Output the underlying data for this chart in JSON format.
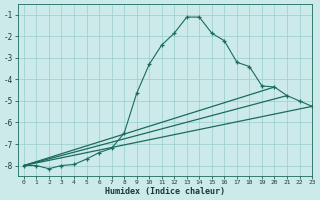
{
  "xlabel": "Humidex (Indice chaleur)",
  "background_color": "#cceaea",
  "grid_color": "#99cccc",
  "line_color": "#1a6b5a",
  "xlim": [
    -0.5,
    23
  ],
  "ylim": [
    -8.5,
    -0.5
  ],
  "xticks": [
    0,
    1,
    2,
    3,
    4,
    5,
    6,
    7,
    8,
    9,
    10,
    11,
    12,
    13,
    14,
    15,
    16,
    17,
    18,
    19,
    20,
    21,
    22,
    23
  ],
  "yticks": [
    -1,
    -2,
    -3,
    -4,
    -5,
    -6,
    -7,
    -8
  ],
  "curve": {
    "x": [
      0,
      1,
      2,
      3,
      4,
      5,
      6,
      7,
      8,
      9,
      10,
      11,
      12,
      13,
      14,
      15,
      16,
      17,
      18,
      19,
      20,
      21,
      22,
      23
    ],
    "y": [
      -8.0,
      -8.0,
      -8.15,
      -8.0,
      -7.95,
      -7.7,
      -7.4,
      -7.2,
      -6.5,
      -4.65,
      -3.3,
      -2.4,
      -1.85,
      -1.1,
      -1.1,
      -1.85,
      -2.2,
      -3.2,
      -3.4,
      -4.3,
      -4.35,
      -4.75,
      -5.0,
      -5.25
    ]
  },
  "straight_lines": [
    {
      "x": [
        0,
        20
      ],
      "y": [
        -8.0,
        -4.35
      ]
    },
    {
      "x": [
        0,
        21
      ],
      "y": [
        -8.0,
        -4.75
      ]
    },
    {
      "x": [
        0,
        23
      ],
      "y": [
        -8.0,
        -5.25
      ]
    }
  ]
}
